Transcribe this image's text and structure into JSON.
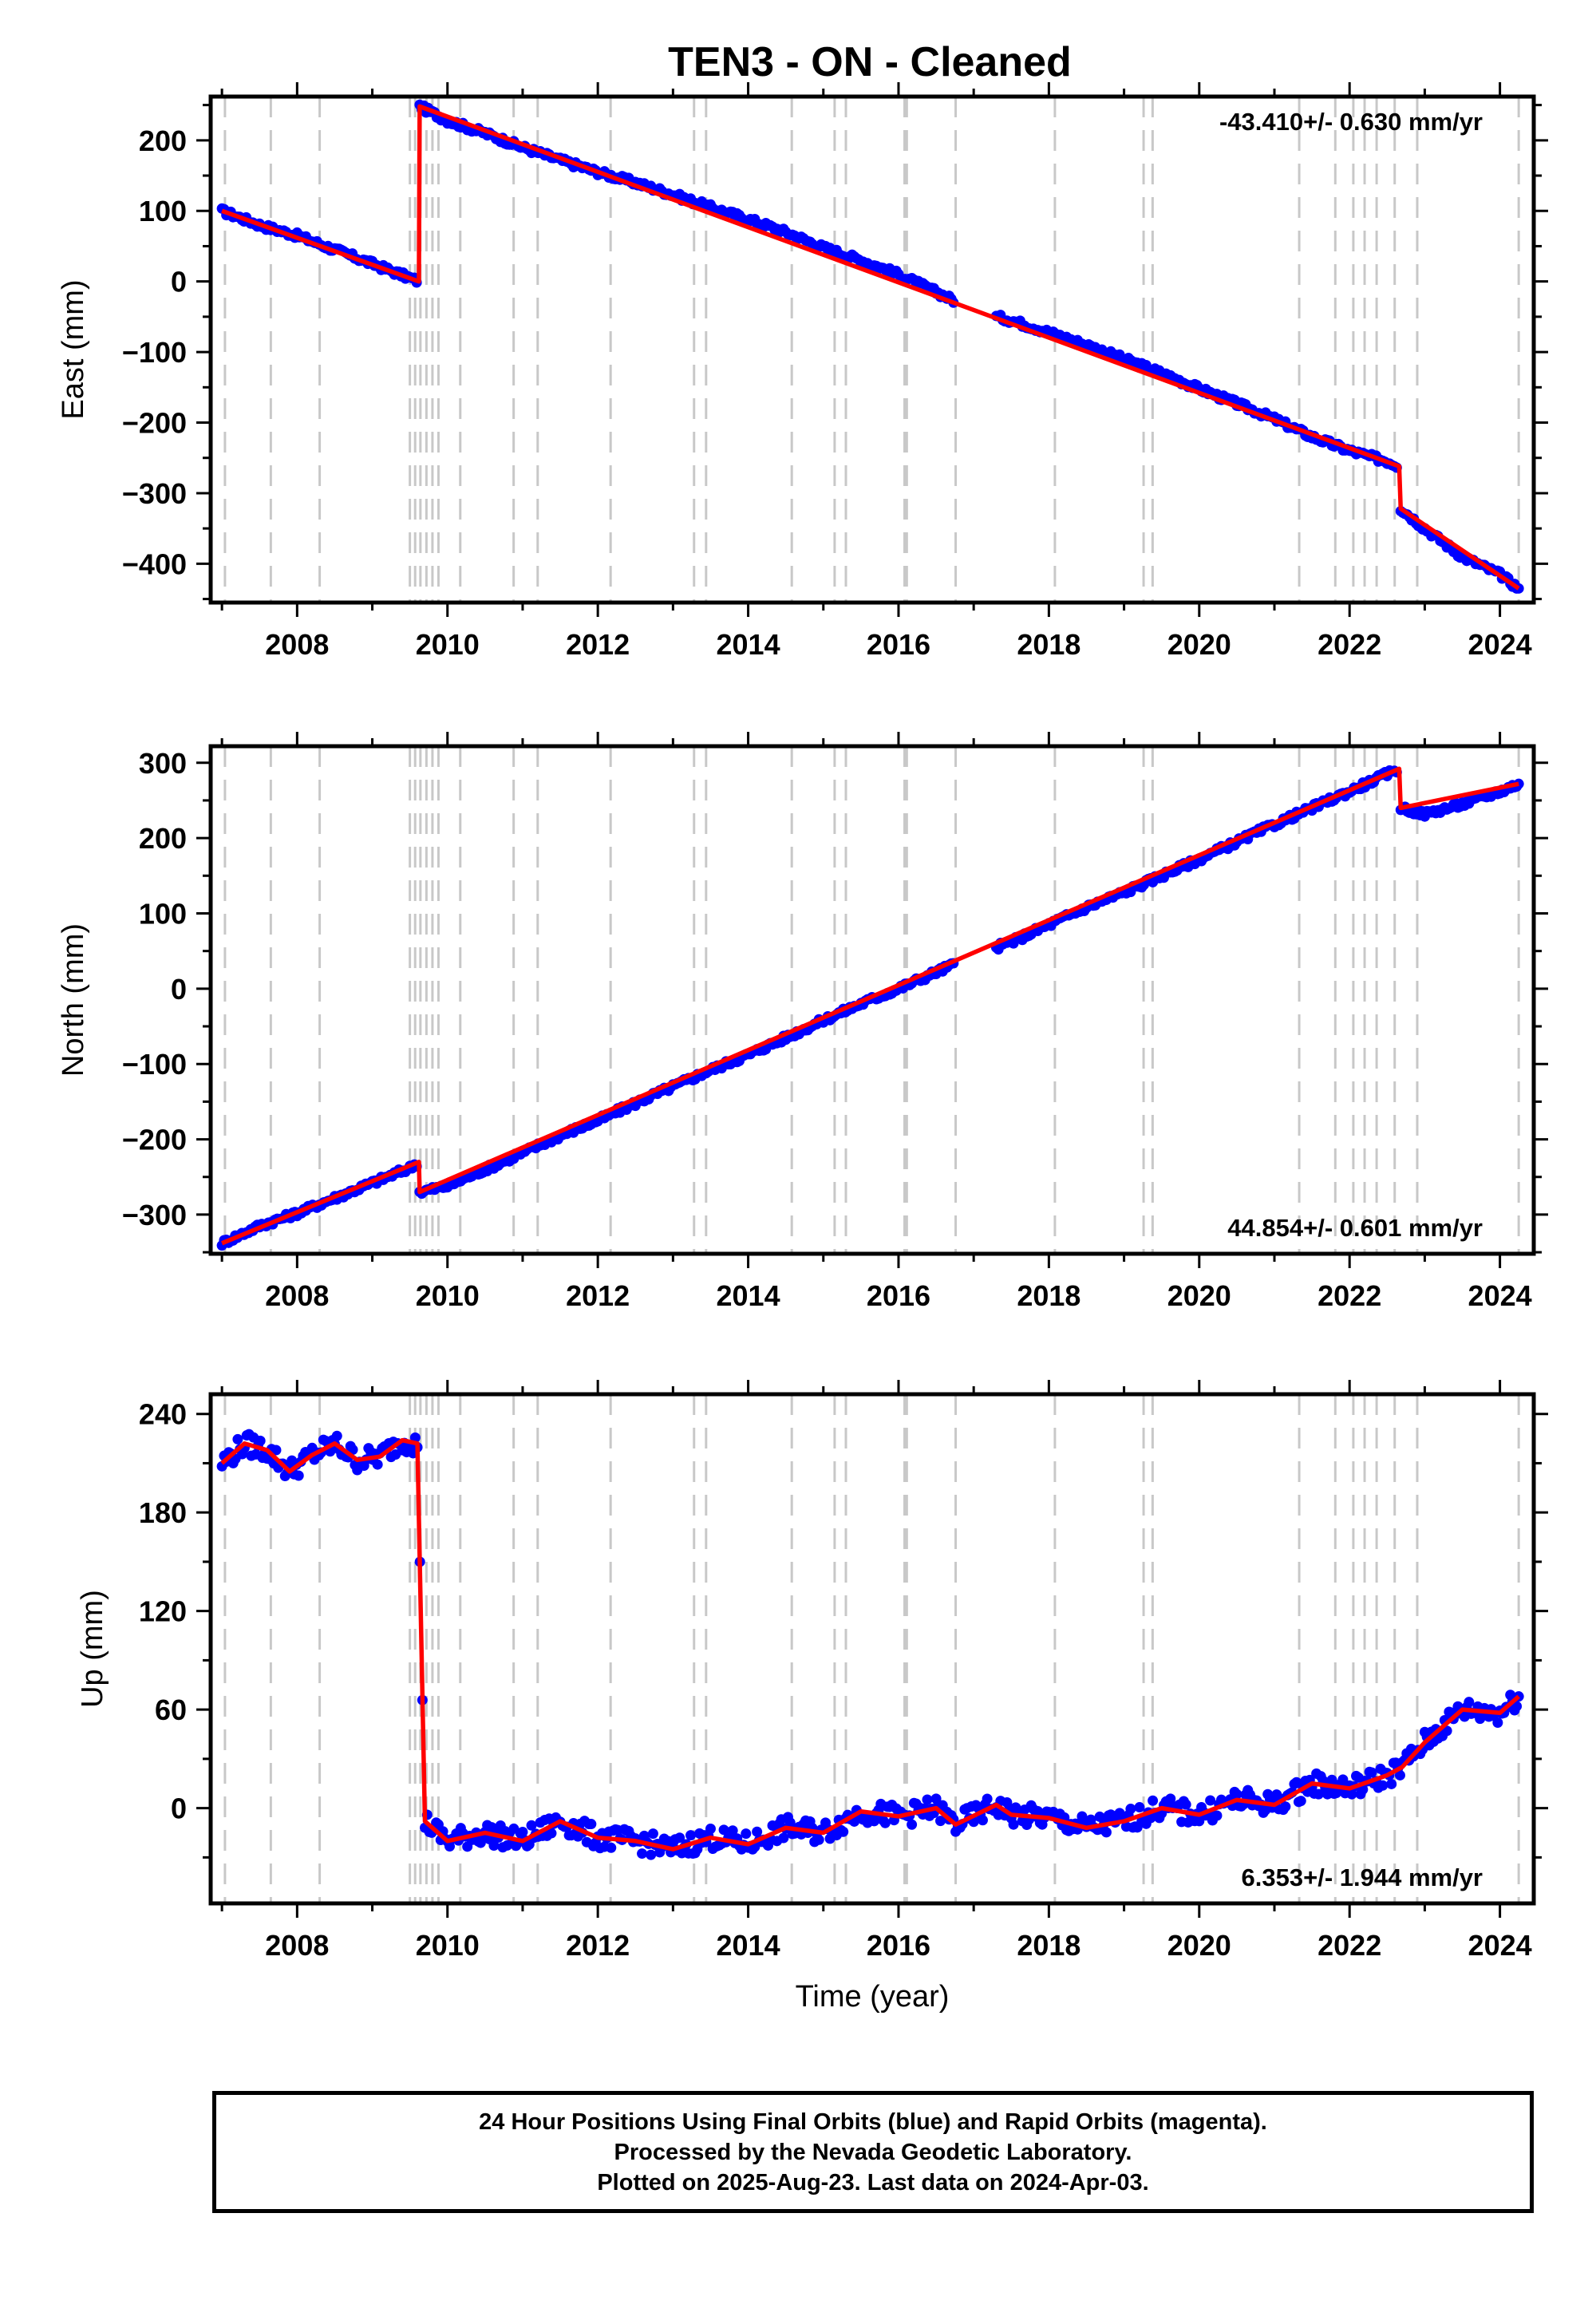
{
  "chart_data": [
    {
      "type": "scatter",
      "title": "TEN3  - ON - Cleaned",
      "xlabel": "",
      "ylabel": "East (mm)",
      "xlim": [
        2006.85,
        2024.45
      ],
      "ylim": [
        -455,
        262
      ],
      "xticks": [
        2008,
        2010,
        2012,
        2014,
        2016,
        2018,
        2020,
        2022,
        2024
      ],
      "yticks": [
        -400,
        -300,
        -200,
        -100,
        0,
        100,
        200
      ],
      "rate_label": "-43.410+/- 0.630 mm/yr",
      "rate_position": "top-right",
      "series": [
        {
          "color": "#0000ff",
          "x": [
            2007.0,
            2007.5,
            2008.0,
            2008.5,
            2009.0,
            2009.5,
            2009.62,
            2009.63,
            2010.0,
            2010.5,
            2011.0,
            2011.5,
            2012.0,
            2012.5,
            2013.0,
            2013.5,
            2014.0,
            2014.5,
            2015.0,
            2015.5,
            2016.0,
            2016.5,
            2016.76,
            2017.3,
            2017.5,
            2018.0,
            2018.5,
            2019.0,
            2019.5,
            2020.0,
            2020.5,
            2021.0,
            2021.5,
            2022.0,
            2022.5,
            2022.66,
            2022.68,
            2023.0,
            2023.5,
            2024.0,
            2024.25
          ],
          "y": [
            100,
            80,
            65,
            45,
            25,
            5,
            0,
            248,
            228,
            210,
            190,
            172,
            155,
            140,
            123,
            105,
            88,
            70,
            48,
            30,
            10,
            -15,
            -28,
            -50,
            -55,
            -72,
            -90,
            -110,
            -130,
            -152,
            -173,
            -195,
            -220,
            -240,
            -255,
            -262,
            -322,
            -350,
            -390,
            -415,
            -435
          ]
        }
      ],
      "model": {
        "color": "#ff0000",
        "x": [
          2007.0,
          2009.62,
          2009.63,
          2022.66,
          2022.68,
          2024.25
        ],
        "y": [
          100,
          0,
          248,
          -262,
          -322,
          -435
        ]
      }
    },
    {
      "type": "scatter",
      "title": "",
      "xlabel": "",
      "ylabel": "North (mm)",
      "xlim": [
        2006.85,
        2024.45
      ],
      "ylim": [
        -352,
        322
      ],
      "xticks": [
        2008,
        2010,
        2012,
        2014,
        2016,
        2018,
        2020,
        2022,
        2024
      ],
      "yticks": [
        -300,
        -200,
        -100,
        0,
        100,
        200,
        300
      ],
      "rate_label": "44.854+/- 0.601 mm/yr",
      "rate_position": "bottom-right",
      "series": [
        {
          "color": "#0000ff",
          "x": [
            2007.0,
            2007.5,
            2008.0,
            2008.5,
            2009.0,
            2009.5,
            2009.62,
            2009.63,
            2010.0,
            2010.5,
            2011.0,
            2011.5,
            2012.0,
            2012.5,
            2013.0,
            2013.5,
            2014.0,
            2014.5,
            2015.0,
            2015.5,
            2016.0,
            2016.5,
            2016.76,
            2017.3,
            2017.5,
            2018.0,
            2018.5,
            2019.0,
            2019.5,
            2020.0,
            2020.5,
            2021.0,
            2021.5,
            2022.0,
            2022.5,
            2022.66,
            2022.68,
            2023.0,
            2023.5,
            2024.0,
            2024.25
          ],
          "y": [
            -338,
            -315,
            -298,
            -278,
            -258,
            -238,
            -230,
            -270,
            -262,
            -240,
            -218,
            -195,
            -175,
            -152,
            -130,
            -108,
            -88,
            -65,
            -42,
            -20,
            0,
            22,
            33,
            55,
            62,
            85,
            108,
            128,
            150,
            172,
            195,
            218,
            240,
            262,
            285,
            292,
            240,
            232,
            245,
            262,
            272
          ]
        }
      ],
      "model": {
        "color": "#ff0000",
        "x": [
          2007.0,
          2009.62,
          2009.63,
          2022.66,
          2022.68,
          2024.25
        ],
        "y": [
          -338,
          -230,
          -270,
          292,
          240,
          272
        ]
      }
    },
    {
      "type": "scatter",
      "title": "",
      "xlabel": "Time (year)",
      "ylabel": "Up (mm)",
      "xlim": [
        2006.85,
        2024.45
      ],
      "ylim": [
        -58,
        252
      ],
      "xticks": [
        2008,
        2010,
        2012,
        2014,
        2016,
        2018,
        2020,
        2022,
        2024
      ],
      "yticks": [
        0,
        60,
        120,
        180,
        240
      ],
      "rate_label": "6.353+/- 1.944 mm/yr",
      "rate_position": "bottom-right",
      "series": [
        {
          "color": "#0000ff",
          "x": [
            2007.0,
            2007.3,
            2007.6,
            2007.9,
            2008.2,
            2008.5,
            2008.8,
            2009.1,
            2009.4,
            2009.6,
            2009.7,
            2010.0,
            2010.5,
            2011.0,
            2011.5,
            2012.0,
            2012.5,
            2013.0,
            2013.5,
            2014.0,
            2014.5,
            2015.0,
            2015.5,
            2016.0,
            2016.5,
            2016.76,
            2017.3,
            2017.5,
            2018.0,
            2018.5,
            2019.0,
            2019.5,
            2020.0,
            2020.5,
            2021.0,
            2021.5,
            2022.0,
            2022.5,
            2022.7,
            2023.0,
            2023.5,
            2024.0,
            2024.25
          ],
          "y": [
            210,
            222,
            218,
            205,
            215,
            222,
            212,
            214,
            224,
            222,
            -8,
            -20,
            -15,
            -20,
            -8,
            -18,
            -20,
            -25,
            -18,
            -22,
            -12,
            -15,
            -2,
            -5,
            0,
            -10,
            2,
            -4,
            -6,
            -12,
            -8,
            0,
            -4,
            5,
            2,
            15,
            12,
            20,
            25,
            40,
            60,
            58,
            68
          ]
        }
      ],
      "model": {
        "color": "#ff0000",
        "x": [
          2007.0,
          2007.3,
          2007.6,
          2007.9,
          2008.2,
          2008.5,
          2008.8,
          2009.1,
          2009.4,
          2009.6,
          2009.7,
          2010.0,
          2010.5,
          2011.0,
          2011.5,
          2012.0,
          2012.5,
          2013.0,
          2013.5,
          2014.0,
          2014.5,
          2015.0,
          2015.5,
          2016.0,
          2016.5,
          2016.76,
          2017.3,
          2017.5,
          2018.0,
          2018.5,
          2019.0,
          2019.5,
          2020.0,
          2020.5,
          2021.0,
          2021.5,
          2022.0,
          2022.5,
          2022.7,
          2023.0,
          2023.5,
          2024.0,
          2024.25
        ],
        "y": [
          210,
          222,
          218,
          205,
          215,
          222,
          212,
          214,
          224,
          222,
          -8,
          -20,
          -15,
          -20,
          -8,
          -18,
          -20,
          -25,
          -18,
          -22,
          -12,
          -15,
          -2,
          -5,
          0,
          -10,
          2,
          -4,
          -6,
          -12,
          -8,
          0,
          -4,
          5,
          2,
          15,
          12,
          20,
          25,
          40,
          60,
          58,
          68
        ]
      }
    }
  ],
  "event_lines": [
    2007.04,
    2007.65,
    2008.3,
    2009.5,
    2009.57,
    2009.64,
    2009.72,
    2009.8,
    2009.88,
    2010.17,
    2010.88,
    2011.2,
    2012.17,
    2013.28,
    2013.44,
    2014.58,
    2015.15,
    2015.3,
    2016.08,
    2016.11,
    2016.76,
    2018.08,
    2019.26,
    2019.38,
    2021.33,
    2021.81,
    2022.05,
    2022.2,
    2022.36,
    2022.6,
    2022.9,
    2024.25
  ],
  "caption": {
    "line1": "24 Hour Positions Using Final Orbits (blue) and Rapid Orbits (magenta).",
    "line2": "Processed by the Nevada Geodetic Laboratory.",
    "line3": "Plotted on 2025-Aug-23. Last data on 2024-Apr-03."
  },
  "colors": {
    "final": "#0000ff",
    "model": "#ff0000",
    "event": "#c8c8c8"
  }
}
